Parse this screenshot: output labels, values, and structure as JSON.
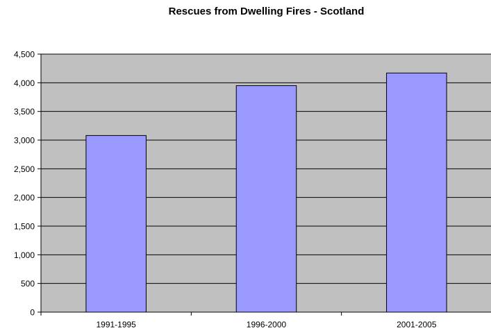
{
  "chart_data": {
    "type": "bar",
    "title": "Rescues from Dwelling Fires - Scotland",
    "categories": [
      "1991-1995",
      "1996-2000",
      "2001-2005"
    ],
    "values": [
      3080,
      3950,
      4170
    ],
    "ylim": [
      0,
      4500
    ],
    "yticks": [
      0,
      500,
      1000,
      1500,
      2000,
      2500,
      3000,
      3500,
      4000,
      4500
    ],
    "ytick_labels": [
      "0",
      "500",
      "1,000",
      "1,500",
      "2,000",
      "2,500",
      "3,000",
      "3,500",
      "4,000",
      "4,500"
    ],
    "xlabel": "",
    "ylabel": "",
    "grid": true,
    "legend": "none",
    "colors": {
      "plot_background": "#c0c0c0",
      "bar_fill": "#9999ff",
      "bar_stroke": "#000000",
      "gridline": "#000000"
    }
  }
}
